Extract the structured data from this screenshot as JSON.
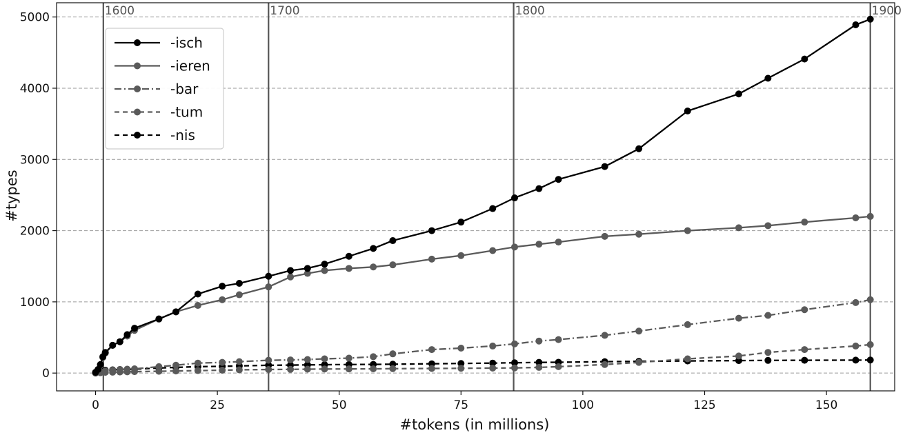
{
  "chart_data": {
    "type": "line",
    "xlabel": "#tokens (in millions)",
    "ylabel": "#types",
    "xlim": [
      -8,
      164
    ],
    "ylim": [
      -250,
      5200
    ],
    "xticks": [
      0,
      25,
      50,
      75,
      100,
      125,
      150
    ],
    "yticks": [
      0,
      1000,
      2000,
      3000,
      4000,
      5000
    ],
    "grid": "horizontal dashed",
    "legend_position": "top-left",
    "vertical_markers": [
      {
        "x": 1.6,
        "label": "1600"
      },
      {
        "x": 35.5,
        "label": "1700"
      },
      {
        "x": 85.8,
        "label": "1800"
      },
      {
        "x": 159,
        "label": "1900"
      }
    ],
    "series": [
      {
        "name": "-isch",
        "color": "#000000",
        "dash": "solid",
        "x": [
          0,
          0.5,
          1,
          1.5,
          2,
          3.5,
          5,
          6.5,
          8,
          13,
          16.5,
          21,
          26,
          29.5,
          35.5,
          40,
          43.5,
          47,
          52,
          57,
          61,
          69,
          75,
          81.5,
          86,
          91,
          95,
          104.5,
          111.5,
          121.5,
          132,
          138,
          145.5,
          156,
          159
        ],
        "y": [
          10,
          50,
          120,
          230,
          290,
          390,
          440,
          540,
          630,
          760,
          860,
          1110,
          1220,
          1260,
          1360,
          1440,
          1470,
          1530,
          1640,
          1750,
          1860,
          2000,
          2120,
          2310,
          2460,
          2590,
          2720,
          2900,
          3150,
          3680,
          3920,
          4140,
          4410,
          4890,
          4970
        ]
      },
      {
        "name": "-ieren",
        "color": "#5a5a5a",
        "dash": "solid",
        "x": [
          0,
          0.5,
          1,
          1.5,
          2,
          3.5,
          5,
          6.5,
          8,
          13,
          16.5,
          21,
          26,
          29.5,
          35.5,
          40,
          43.5,
          47,
          52,
          57,
          61,
          69,
          75,
          81.5,
          86,
          91,
          95,
          104.5,
          111.5,
          121.5,
          132,
          138,
          145.5,
          156,
          159
        ],
        "y": [
          10,
          50,
          110,
          220,
          280,
          390,
          440,
          520,
          600,
          760,
          860,
          950,
          1030,
          1100,
          1210,
          1350,
          1400,
          1440,
          1470,
          1490,
          1520,
          1600,
          1650,
          1720,
          1770,
          1810,
          1840,
          1920,
          1950,
          2000,
          2040,
          2070,
          2120,
          2180,
          2200
        ]
      },
      {
        "name": "-bar",
        "color": "#5a5a5a",
        "dash": "dashdot",
        "x": [
          0,
          1,
          2,
          3.5,
          5,
          6.5,
          8,
          13,
          16.5,
          21,
          26,
          29.5,
          35.5,
          40,
          43.5,
          47,
          52,
          57,
          61,
          69,
          75,
          81.5,
          86,
          91,
          95,
          104.5,
          111.5,
          121.5,
          132,
          138,
          145.5,
          156,
          159
        ],
        "y": [
          0,
          20,
          30,
          40,
          50,
          55,
          60,
          90,
          110,
          140,
          150,
          160,
          180,
          185,
          190,
          200,
          210,
          230,
          270,
          330,
          350,
          380,
          410,
          450,
          470,
          530,
          590,
          680,
          770,
          810,
          890,
          990,
          1030
        ]
      },
      {
        "name": "-tum",
        "color": "#5a5a5a",
        "dash": "dashed",
        "x": [
          0,
          1,
          2,
          3.5,
          5,
          6.5,
          8,
          13,
          16.5,
          21,
          26,
          29.5,
          35.5,
          40,
          43.5,
          47,
          52,
          57,
          61,
          69,
          75,
          81.5,
          86,
          91,
          95,
          104.5,
          111.5,
          121.5,
          132,
          138,
          145.5,
          156,
          159
        ],
        "y": [
          0,
          5,
          10,
          12,
          15,
          18,
          20,
          25,
          30,
          35,
          40,
          45,
          50,
          52,
          55,
          57,
          58,
          60,
          62,
          65,
          67,
          70,
          72,
          80,
          90,
          120,
          150,
          200,
          240,
          290,
          330,
          380,
          400
        ]
      },
      {
        "name": "-nis",
        "color": "#000000",
        "dash": "dashed",
        "x": [
          0,
          1,
          2,
          3.5,
          5,
          6.5,
          8,
          13,
          16.5,
          21,
          26,
          29.5,
          35.5,
          40,
          43.5,
          47,
          52,
          57,
          61,
          69,
          75,
          81.5,
          86,
          91,
          95,
          104.5,
          111.5,
          121.5,
          132,
          138,
          145.5,
          156,
          159
        ],
        "y": [
          10,
          30,
          40,
          45,
          50,
          52,
          55,
          70,
          80,
          90,
          95,
          100,
          110,
          112,
          115,
          118,
          120,
          122,
          125,
          130,
          135,
          140,
          145,
          150,
          152,
          160,
          165,
          170,
          175,
          178,
          180,
          182,
          183
        ]
      }
    ]
  }
}
